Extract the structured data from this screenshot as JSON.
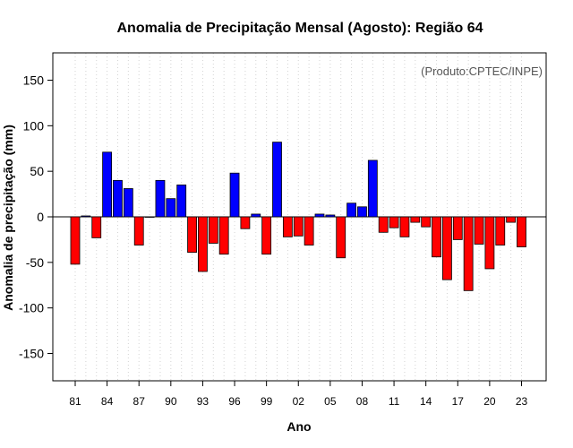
{
  "chart_data": {
    "type": "bar",
    "title": "Anomalia de Precipitação Mensal (Agosto): Região 64",
    "credit": "(Produto:CPTEC/INPE)",
    "xlabel": "Ano",
    "ylabel": "Anomalia de precipitação (mm)",
    "ylim": [
      -180,
      180
    ],
    "yticks": [
      -150,
      -100,
      -50,
      0,
      50,
      100,
      150
    ],
    "grid": "vertical-dotted",
    "colors": {
      "positive": "#0000ff",
      "negative": "#ff0000",
      "outline": "#000000",
      "grid": "#d3d3d3"
    },
    "categories": [
      "81",
      "82",
      "83",
      "84",
      "85",
      "86",
      "87",
      "88",
      "89",
      "90",
      "91",
      "92",
      "93",
      "94",
      "95",
      "96",
      "97",
      "98",
      "99",
      "00",
      "01",
      "02",
      "03",
      "04",
      "05",
      "06",
      "07",
      "08",
      "09",
      "10",
      "11",
      "12",
      "13",
      "14",
      "15",
      "16",
      "17",
      "18",
      "19",
      "20",
      "21",
      "22",
      "23"
    ],
    "tick_labels": [
      "81",
      "84",
      "87",
      "90",
      "93",
      "96",
      "99",
      "02",
      "05",
      "08",
      "11",
      "14",
      "17",
      "20",
      "23"
    ],
    "values": [
      -52,
      1,
      -23,
      71,
      40,
      31,
      -31,
      0,
      40,
      20,
      35,
      -39,
      -60,
      -29,
      -41,
      48,
      -13,
      3,
      -41,
      82,
      -22,
      -21,
      -31,
      3,
      2,
      -45,
      15,
      11,
      62,
      -17,
      -12,
      -22,
      -6,
      -11,
      -44,
      -69,
      -25,
      -81,
      -30,
      -57,
      -31,
      -6,
      -33
    ]
  }
}
